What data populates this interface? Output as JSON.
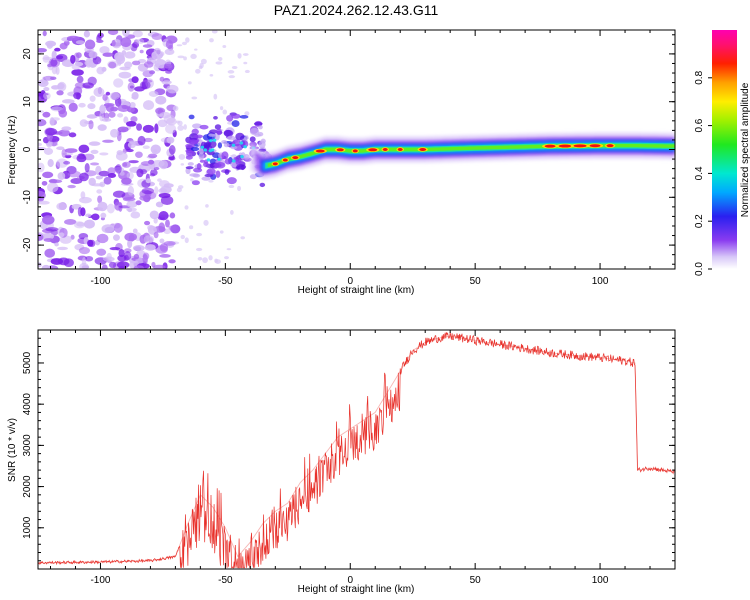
{
  "figure": {
    "title": "PAZ1.2024.262.12.43.G11"
  },
  "chart_data": [
    {
      "type": "heatmap",
      "title": "PAZ1.2024.262.12.43.G11",
      "xlabel": "Height of straight line (km)",
      "ylabel": "Frequency (Hz)",
      "xlim": [
        -125,
        130
      ],
      "ylim": [
        -25,
        25
      ],
      "x_ticks": [
        -100,
        -50,
        0,
        50,
        100
      ],
      "y_ticks": [
        -20,
        -10,
        0,
        10,
        20
      ],
      "colorbar": {
        "label": "Normalized spectral amplitude",
        "range": [
          0,
          1
        ],
        "ticks": [
          "0.0",
          "0.2",
          "0.4",
          "0.6",
          "0.8"
        ],
        "colormap": "rainbow (white-violet-blue-cyan-green-yellow-red-magenta)"
      },
      "ridge_frequency": {
        "height_km": [
          -40,
          -35,
          -30,
          -25,
          -20,
          -15,
          -10,
          -5,
          0,
          5,
          10,
          20,
          30,
          50,
          80,
          100,
          115,
          130
        ],
        "frequency_hz": [
          -1.5,
          -3.5,
          -3.0,
          -2.0,
          -1.5,
          -0.8,
          0.0,
          0.0,
          -0.3,
          -0.3,
          0.0,
          0.0,
          0.0,
          0.3,
          0.7,
          0.8,
          0.8,
          0.7
        ]
      },
      "grid": false
    },
    {
      "type": "line",
      "xlabel": "Height of straight line (km)",
      "ylabel": "SNR (10 * v/v)",
      "xlim": [
        -125,
        130
      ],
      "ylim": [
        0,
        5800
      ],
      "x_ticks": [
        -100,
        -50,
        0,
        50,
        100
      ],
      "y_ticks": [
        1000,
        2000,
        3000,
        4000,
        5000
      ],
      "series": [
        {
          "color": "#e8302a",
          "x": [
            -125,
            -100,
            -80,
            -70,
            -65,
            -60,
            -55,
            -50,
            -45,
            -40,
            -35,
            -30,
            -25,
            -20,
            -15,
            -10,
            -5,
            0,
            5,
            10,
            15,
            20,
            25,
            30,
            35,
            40,
            45,
            50,
            60,
            70,
            80,
            90,
            100,
            110,
            114,
            115,
            120,
            130
          ],
          "y": [
            150,
            170,
            200,
            300,
            1100,
            1800,
            1500,
            1000,
            300,
            650,
            1100,
            1400,
            1600,
            2100,
            2400,
            2800,
            3200,
            3400,
            3600,
            3800,
            4300,
            4800,
            5300,
            5500,
            5600,
            5650,
            5600,
            5550,
            5450,
            5350,
            5250,
            5180,
            5130,
            5050,
            5000,
            2400,
            2450,
            2350
          ]
        }
      ],
      "grid": false
    }
  ]
}
